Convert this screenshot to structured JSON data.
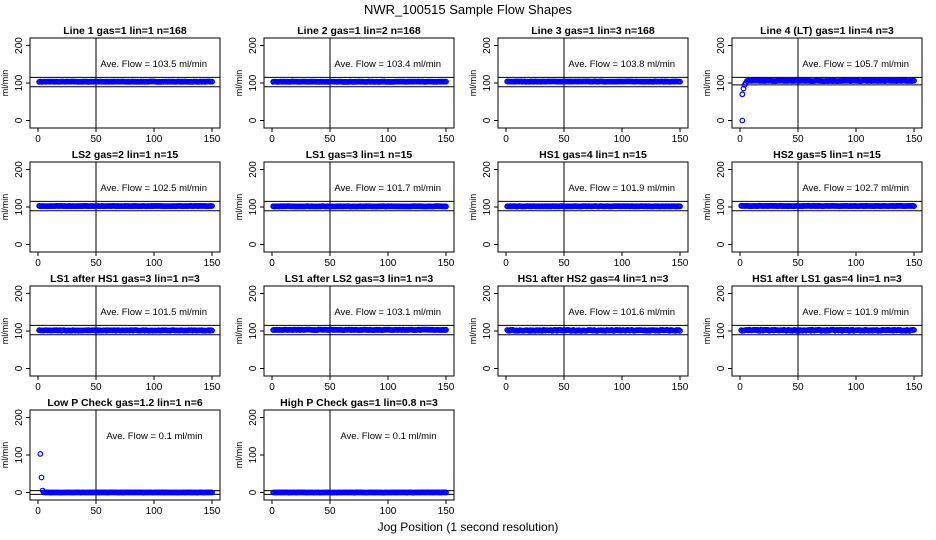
{
  "page": {
    "title": "NWR_100515  Sample Flow Shapes",
    "xlabel": "Jog Position (1 second resolution)"
  },
  "colors": {
    "points": "#0000ff",
    "lines": "#000000"
  },
  "chart_data": [
    {
      "type": "scatter",
      "title": "Line 1 gas=1 lin=1 n=168",
      "ylabel": "ml/min",
      "annotation": "Ave. Flow =  103.5  ml/min",
      "xlim": [
        0,
        150
      ],
      "ylim": [
        -20,
        220
      ],
      "x_ticks": [
        0,
        50,
        100,
        150
      ],
      "y_ticks": [
        0,
        100,
        200
      ],
      "hlines": [
        90,
        115
      ],
      "vline": 50,
      "series": [
        {
          "x_start": 1,
          "x_end": 150,
          "y_start": 103.5,
          "y_plateau": 103.5,
          "noise": 0.5
        }
      ]
    },
    {
      "type": "scatter",
      "title": "Line 2 gas=1 lin=2 n=168",
      "ylabel": "ml/min",
      "annotation": "Ave. Flow =  103.4  ml/min",
      "xlim": [
        0,
        150
      ],
      "ylim": [
        -20,
        220
      ],
      "x_ticks": [
        0,
        50,
        100,
        150
      ],
      "y_ticks": [
        0,
        100,
        200
      ],
      "hlines": [
        90,
        115
      ],
      "vline": 50,
      "series": [
        {
          "x_start": 1,
          "x_end": 150,
          "y_start": 103.4,
          "y_plateau": 103.4,
          "noise": 0.5
        }
      ]
    },
    {
      "type": "scatter",
      "title": "Line 3 gas=1 lin=3 n=168",
      "ylabel": "ml/min",
      "annotation": "Ave. Flow =  103.8  ml/min",
      "xlim": [
        0,
        150
      ],
      "ylim": [
        -20,
        220
      ],
      "x_ticks": [
        0,
        50,
        100,
        150
      ],
      "y_ticks": [
        0,
        100,
        200
      ],
      "hlines": [
        90,
        115
      ],
      "vline": 50,
      "series": [
        {
          "x_start": 1,
          "x_end": 150,
          "y_start": 103.8,
          "y_plateau": 103.8,
          "noise": 0.5
        }
      ]
    },
    {
      "type": "scatter",
      "title": "Line 4 (LT) gas=1 lin=4 n=3",
      "ylabel": "ml/min",
      "annotation": "Ave. Flow =  105.7  ml/min",
      "xlim": [
        0,
        150
      ],
      "ylim": [
        -20,
        220
      ],
      "x_ticks": [
        0,
        50,
        100,
        150
      ],
      "y_ticks": [
        0,
        100,
        200
      ],
      "hlines": [
        95,
        115
      ],
      "vline": 50,
      "series": [
        {
          "x_start": 1,
          "x_end": 150,
          "y_start": 105.7,
          "y_plateau": 105.7,
          "noise": 0.8,
          "early_points": [
            [
              2,
              0
            ],
            [
              2,
              70
            ],
            [
              3,
              85
            ],
            [
              4,
              95
            ],
            [
              5,
              100
            ]
          ]
        }
      ]
    },
    {
      "type": "scatter",
      "title": "LS2 gas=2 lin=1 n=15",
      "ylabel": "ml/min",
      "annotation": "Ave. Flow =  102.5  ml/min",
      "xlim": [
        0,
        150
      ],
      "ylim": [
        -20,
        220
      ],
      "x_ticks": [
        0,
        50,
        100,
        150
      ],
      "y_ticks": [
        0,
        100,
        200
      ],
      "hlines": [
        90,
        115
      ],
      "vline": 50,
      "series": [
        {
          "x_start": 1,
          "x_end": 150,
          "y_start": 102.5,
          "y_plateau": 102.5,
          "noise": 0.5
        }
      ]
    },
    {
      "type": "scatter",
      "title": "LS1 gas=3 lin=1 n=15",
      "ylabel": "ml/min",
      "annotation": "Ave. Flow =  101.7  ml/min",
      "xlim": [
        0,
        150
      ],
      "ylim": [
        -20,
        220
      ],
      "x_ticks": [
        0,
        50,
        100,
        150
      ],
      "y_ticks": [
        0,
        100,
        200
      ],
      "hlines": [
        90,
        115
      ],
      "vline": 50,
      "series": [
        {
          "x_start": 1,
          "x_end": 150,
          "y_start": 101.7,
          "y_plateau": 101.7,
          "noise": 0.5
        }
      ]
    },
    {
      "type": "scatter",
      "title": "HS1 gas=4 lin=1 n=15",
      "ylabel": "ml/min",
      "annotation": "Ave. Flow =  101.9  ml/min",
      "xlim": [
        0,
        150
      ],
      "ylim": [
        -20,
        220
      ],
      "x_ticks": [
        0,
        50,
        100,
        150
      ],
      "y_ticks": [
        0,
        100,
        200
      ],
      "hlines": [
        90,
        115
      ],
      "vline": 50,
      "series": [
        {
          "x_start": 1,
          "x_end": 150,
          "y_start": 101.9,
          "y_plateau": 101.9,
          "noise": 0.5
        }
      ]
    },
    {
      "type": "scatter",
      "title": "HS2 gas=5 lin=1 n=15",
      "ylabel": "ml/min",
      "annotation": "Ave. Flow =  102.7  ml/min",
      "xlim": [
        0,
        150
      ],
      "ylim": [
        -20,
        220
      ],
      "x_ticks": [
        0,
        50,
        100,
        150
      ],
      "y_ticks": [
        0,
        100,
        200
      ],
      "hlines": [
        90,
        115
      ],
      "vline": 50,
      "series": [
        {
          "x_start": 1,
          "x_end": 150,
          "y_start": 102.7,
          "y_plateau": 102.7,
          "noise": 0.5
        }
      ]
    },
    {
      "type": "scatter",
      "title": "LS1 after HS1 gas=3 lin=1 n=3",
      "ylabel": "ml/min",
      "annotation": "Ave. Flow =  101.5  ml/min",
      "xlim": [
        0,
        150
      ],
      "ylim": [
        -20,
        220
      ],
      "x_ticks": [
        0,
        50,
        100,
        150
      ],
      "y_ticks": [
        0,
        100,
        200
      ],
      "hlines": [
        90,
        115
      ],
      "vline": 50,
      "series": [
        {
          "x_start": 1,
          "x_end": 150,
          "y_start": 101.5,
          "y_plateau": 101.5,
          "noise": 0.8
        }
      ]
    },
    {
      "type": "scatter",
      "title": "LS1 after LS2 gas=3 lin=1 n=3",
      "ylabel": "ml/min",
      "annotation": "Ave. Flow =  103.1  ml/min",
      "xlim": [
        0,
        150
      ],
      "ylim": [
        -20,
        220
      ],
      "x_ticks": [
        0,
        50,
        100,
        150
      ],
      "y_ticks": [
        0,
        100,
        200
      ],
      "hlines": [
        90,
        115
      ],
      "vline": 50,
      "series": [
        {
          "x_start": 1,
          "x_end": 150,
          "y_start": 103.1,
          "y_plateau": 103.1,
          "noise": 0.8
        }
      ]
    },
    {
      "type": "scatter",
      "title": "HS1 after HS2 gas=4 lin=1 n=3",
      "ylabel": "ml/min",
      "annotation": "Ave. Flow =  101.6  ml/min",
      "xlim": [
        0,
        150
      ],
      "ylim": [
        -20,
        220
      ],
      "x_ticks": [
        0,
        50,
        100,
        150
      ],
      "y_ticks": [
        0,
        100,
        200
      ],
      "hlines": [
        90,
        115
      ],
      "vline": 50,
      "series": [
        {
          "x_start": 1,
          "x_end": 150,
          "y_start": 101.6,
          "y_plateau": 101.6,
          "noise": 1.5
        }
      ]
    },
    {
      "type": "scatter",
      "title": "HS1 after LS1 gas=4 lin=1 n=3",
      "ylabel": "ml/min",
      "annotation": "Ave. Flow =  101.9  ml/min",
      "xlim": [
        0,
        150
      ],
      "ylim": [
        -20,
        220
      ],
      "x_ticks": [
        0,
        50,
        100,
        150
      ],
      "y_ticks": [
        0,
        100,
        200
      ],
      "hlines": [
        90,
        115
      ],
      "vline": 50,
      "series": [
        {
          "x_start": 1,
          "x_end": 150,
          "y_start": 101.9,
          "y_plateau": 101.9,
          "noise": 1.5
        }
      ]
    },
    {
      "type": "scatter",
      "title": "Low P Check gas=1.2 lin=1 n=6",
      "ylabel": "ml/min",
      "annotation": "Ave. Flow =  0.1  ml/min",
      "xlim": [
        0,
        150
      ],
      "ylim": [
        -20,
        220
      ],
      "x_ticks": [
        0,
        50,
        100,
        150
      ],
      "y_ticks": [
        0,
        100,
        200
      ],
      "hlines": [
        -5,
        5
      ],
      "vline": 50,
      "series": [
        {
          "x_start": 1,
          "x_end": 150,
          "y_start": 0.1,
          "y_plateau": 0.1,
          "noise": 0.3,
          "early_points": [
            [
              2,
              103
            ],
            [
              3,
              40
            ],
            [
              4,
              5
            ]
          ]
        }
      ]
    },
    {
      "type": "scatter",
      "title": "High P Check gas=1 lin=0.8 n=3",
      "ylabel": "ml/min",
      "annotation": "Ave. Flow =  0.1  ml/min",
      "xlim": [
        0,
        150
      ],
      "ylim": [
        -20,
        220
      ],
      "x_ticks": [
        0,
        50,
        100,
        150
      ],
      "y_ticks": [
        0,
        100,
        200
      ],
      "hlines": [
        -5,
        5
      ],
      "vline": 50,
      "series": [
        {
          "x_start": 1,
          "x_end": 150,
          "y_start": 0.1,
          "y_plateau": 0.1,
          "noise": 0.3
        }
      ]
    }
  ]
}
